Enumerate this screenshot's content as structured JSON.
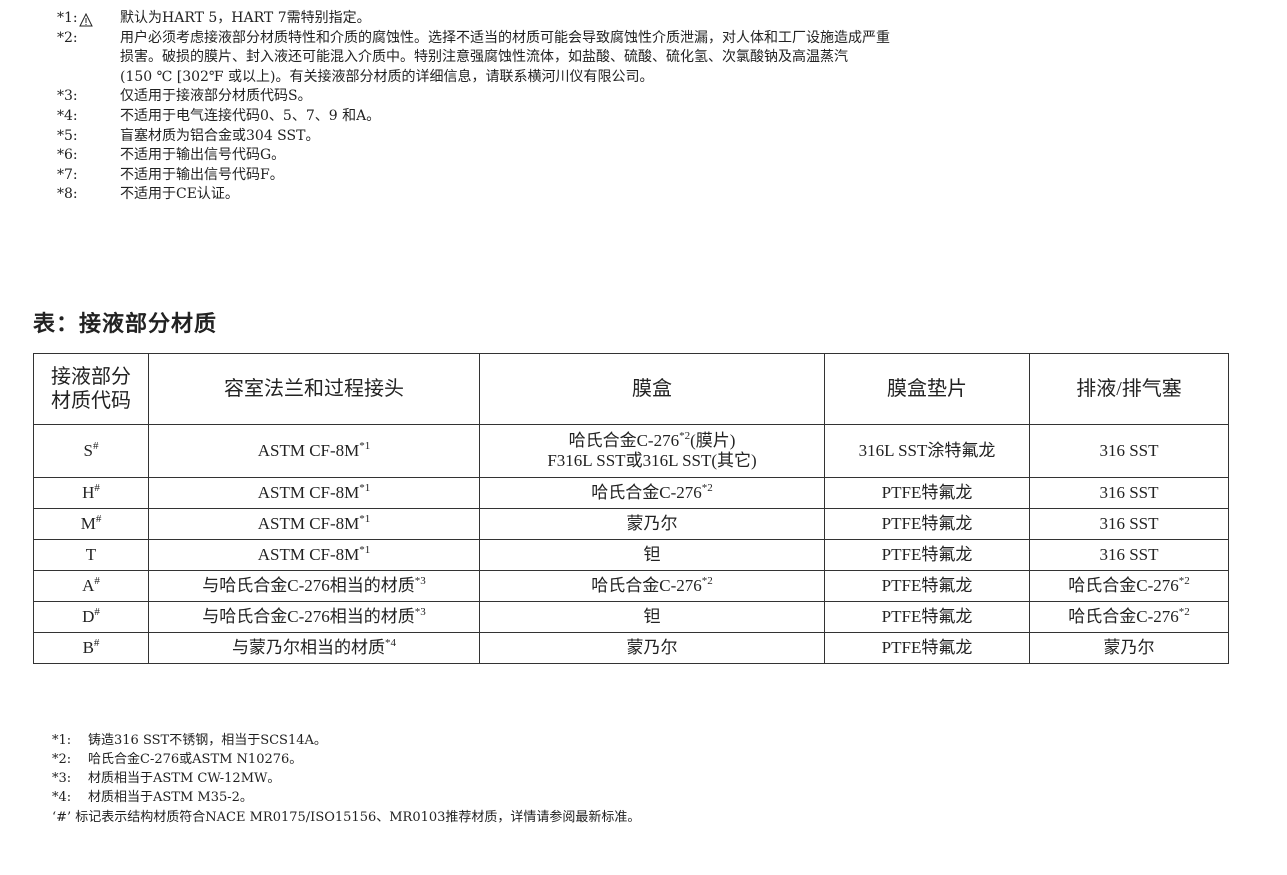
{
  "notes": [
    {
      "label": "*1:",
      "text": "默认为HART 5，HART 7需特别指定。"
    },
    {
      "label": "*2:",
      "text": "用户必须考虑接液部分材质特性和介质的腐蚀性。选择不适当的材质可能会导致腐蚀性介质泄漏，对人体和工厂设施造成严重\n损害。破损的膜片、封入液还可能混入介质中。特别注意强腐蚀性流体，如盐酸、硫酸、硫化氢、次氯酸钠及高温蒸汽\n(150 ℃ [302℉ 或以上)。有关接液部分材质的详细信息，请联系横河川仪有限公司。",
      "icon": "warning-triangle-icon"
    },
    {
      "label": "*3:",
      "text": "仅适用于接液部分材质代码S。"
    },
    {
      "label": "*4:",
      "text": "不适用于电气连接代码0、5、7、9 和A。"
    },
    {
      "label": "*5:",
      "text": "盲塞材质为铝合金或304 SST。"
    },
    {
      "label": "*6:",
      "text": "不适用于输出信号代码G。"
    },
    {
      "label": "*7:",
      "text": "不适用于输出信号代码F。"
    },
    {
      "label": "*8:",
      "text": "不适用于CE认证。"
    }
  ],
  "table_title": "表：接液部分材质",
  "table": {
    "headers": [
      "接液部分\n材质代码",
      "容室法兰和过程接头",
      "膜盒",
      "膜盒垫片",
      "排液/排气塞"
    ],
    "rows": [
      {
        "code": "S",
        "mark": "#",
        "flange": "ASTM CF-8M",
        "flange_sup": "*1",
        "capsule": "哈氏合金C-276",
        "capsule_sup": "*2",
        "capsule_tail": "(膜片)",
        "capsule2": "F316L SST或316L SST(其它)",
        "gasket": "316L SST涂特氟龙",
        "drain": "316 SST",
        "drain_sup": ""
      },
      {
        "code": "H",
        "mark": "#",
        "flange": "ASTM CF-8M",
        "flange_sup": "*1",
        "capsule": "哈氏合金C-276",
        "capsule_sup": "*2",
        "capsule_tail": "",
        "capsule2": "",
        "gasket": "PTFE特氟龙",
        "drain": "316 SST",
        "drain_sup": ""
      },
      {
        "code": "M",
        "mark": "#",
        "flange": "ASTM CF-8M",
        "flange_sup": "*1",
        "capsule": "蒙乃尔",
        "capsule_sup": "",
        "capsule_tail": "",
        "capsule2": "",
        "gasket": "PTFE特氟龙",
        "drain": "316 SST",
        "drain_sup": ""
      },
      {
        "code": "T",
        "mark": "",
        "flange": "ASTM CF-8M",
        "flange_sup": "*1",
        "capsule": "钽",
        "capsule_sup": "",
        "capsule_tail": "",
        "capsule2": "",
        "gasket": "PTFE特氟龙",
        "drain": "316 SST",
        "drain_sup": ""
      },
      {
        "code": "A",
        "mark": "#",
        "flange": "与哈氏合金C-276相当的材质",
        "flange_sup": "*3",
        "capsule": "哈氏合金C-276",
        "capsule_sup": "*2",
        "capsule_tail": "",
        "capsule2": "",
        "gasket": "PTFE特氟龙",
        "drain": "哈氏合金C-276",
        "drain_sup": "*2"
      },
      {
        "code": "D",
        "mark": "#",
        "flange": "与哈氏合金C-276相当的材质",
        "flange_sup": "*3",
        "capsule": "钽",
        "capsule_sup": "",
        "capsule_tail": "",
        "capsule2": "",
        "gasket": "PTFE特氟龙",
        "drain": "哈氏合金C-276",
        "drain_sup": "*2"
      },
      {
        "code": "B",
        "mark": "#",
        "flange": "与蒙乃尔相当的材质",
        "flange_sup": "*4",
        "capsule": "蒙乃尔",
        "capsule_sup": "",
        "capsule_tail": "",
        "capsule2": "",
        "gasket": "PTFE特氟龙",
        "drain": "蒙乃尔",
        "drain_sup": ""
      }
    ]
  },
  "footnotes": [
    {
      "label": "*1:",
      "text": "铸造316 SST不锈钢，相当于SCS14A。"
    },
    {
      "label": "*2:",
      "text": "哈氏合金C-276或ASTM N10276。"
    },
    {
      "label": "*3:",
      "text": "材质相当于ASTM CW-12MW。"
    },
    {
      "label": "*4:",
      "text": "材质相当于ASTM M35-2。"
    }
  ],
  "hash_note": "‘#’  标记表示结构材质符合NACE MR0175/ISO15156、MR0103推荐材质，详情请参阅最新标准。"
}
